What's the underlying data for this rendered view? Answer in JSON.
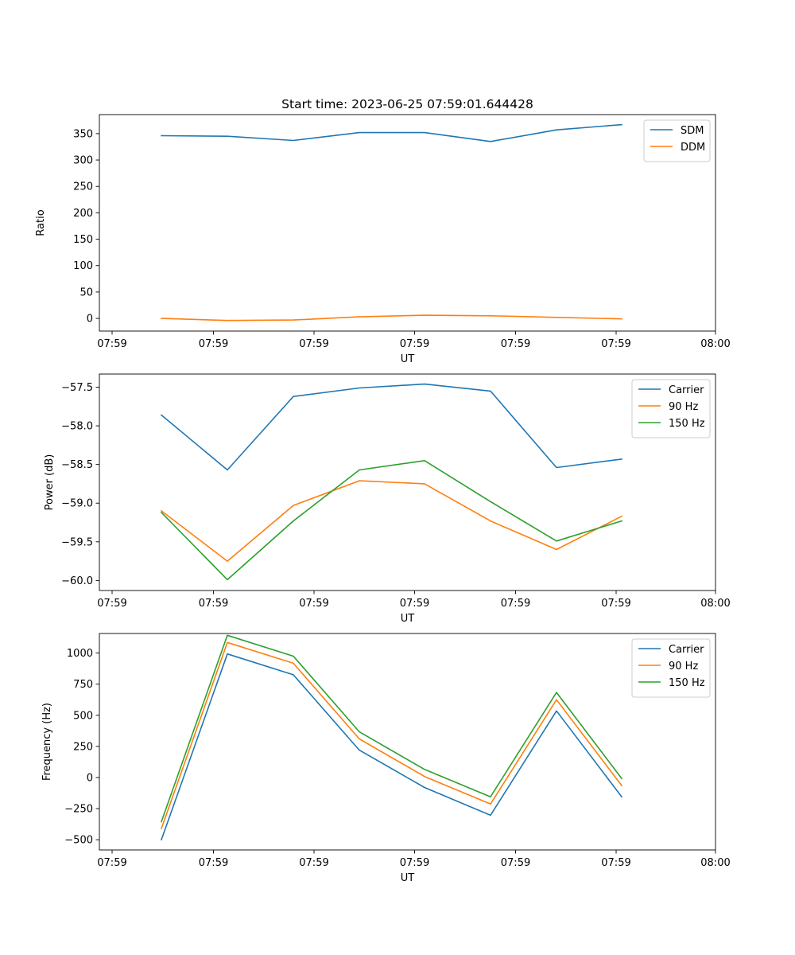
{
  "figure": {
    "title": "Start time: 2023-06-25 07:59:01.644428"
  },
  "chart_data": [
    {
      "type": "line",
      "title": "Start time: 2023-06-25 07:59:01.644428",
      "xlabel": "UT",
      "ylabel": "Ratio",
      "x_tick_labels": [
        "07:59",
        "07:59",
        "07:59",
        "07:59",
        "07:59",
        "07:59",
        "08:00"
      ],
      "y_ticks": [
        0,
        50,
        100,
        150,
        200,
        250,
        300,
        350
      ],
      "ylim": [
        -24,
        386
      ],
      "legend_position": "top-right",
      "grid": false,
      "series": [
        {
          "name": "SDM",
          "color": "#1f77b4",
          "values": [
            346,
            345,
            337,
            352,
            352,
            335,
            357,
            367
          ]
        },
        {
          "name": "DDM",
          "color": "#ff7f0e",
          "values": [
            0,
            -4,
            -3,
            3,
            6,
            5,
            2,
            -1
          ]
        }
      ]
    },
    {
      "type": "line",
      "title": "",
      "xlabel": "UT",
      "ylabel": "Power (dB)",
      "x_tick_labels": [
        "07:59",
        "07:59",
        "07:59",
        "07:59",
        "07:59",
        "07:59",
        "08:00"
      ],
      "y_ticks": [
        -60.0,
        -59.5,
        -59.0,
        -58.5,
        -58.0,
        -57.5
      ],
      "y_tick_labels": [
        "−60.0",
        "−59.5",
        "−59.0",
        "−58.5",
        "−58.0",
        "−57.5"
      ],
      "ylim": [
        -60.13,
        -57.33
      ],
      "legend_position": "top-right",
      "grid": false,
      "series": [
        {
          "name": "Carrier",
          "color": "#1f77b4",
          "values": [
            -57.86,
            -58.57,
            -57.62,
            -57.51,
            -57.46,
            -57.55,
            -58.54,
            -58.43
          ]
        },
        {
          "name": "90 Hz",
          "color": "#ff7f0e",
          "values": [
            -59.1,
            -59.75,
            -59.03,
            -58.71,
            -58.75,
            -59.23,
            -59.6,
            -59.17
          ]
        },
        {
          "name": "150 Hz",
          "color": "#2ca02c",
          "values": [
            -59.12,
            -59.99,
            -59.23,
            -58.57,
            -58.45,
            -58.98,
            -59.49,
            -59.23
          ]
        }
      ]
    },
    {
      "type": "line",
      "title": "",
      "xlabel": "UT",
      "ylabel": "Frequency (Hz)",
      "x_tick_labels": [
        "07:59",
        "07:59",
        "07:59",
        "07:59",
        "07:59",
        "07:59",
        "08:00"
      ],
      "y_ticks": [
        -500,
        -250,
        0,
        250,
        500,
        750,
        1000
      ],
      "y_tick_labels": [
        "−500",
        "−250",
        "0",
        "250",
        "500",
        "750",
        "1000"
      ],
      "ylim": [
        -582,
        1157
      ],
      "legend_position": "top-right",
      "grid": false,
      "series": [
        {
          "name": "Carrier",
          "color": "#1f77b4",
          "values": [
            -500,
            993,
            825,
            220,
            -80,
            -303,
            535,
            -155
          ]
        },
        {
          "name": "90 Hz",
          "color": "#ff7f0e",
          "values": [
            -410,
            1085,
            918,
            310,
            8,
            -213,
            625,
            -65
          ]
        },
        {
          "name": "150 Hz",
          "color": "#2ca02c",
          "values": [
            -355,
            1142,
            975,
            367,
            65,
            -155,
            683,
            -8
          ]
        }
      ]
    }
  ]
}
